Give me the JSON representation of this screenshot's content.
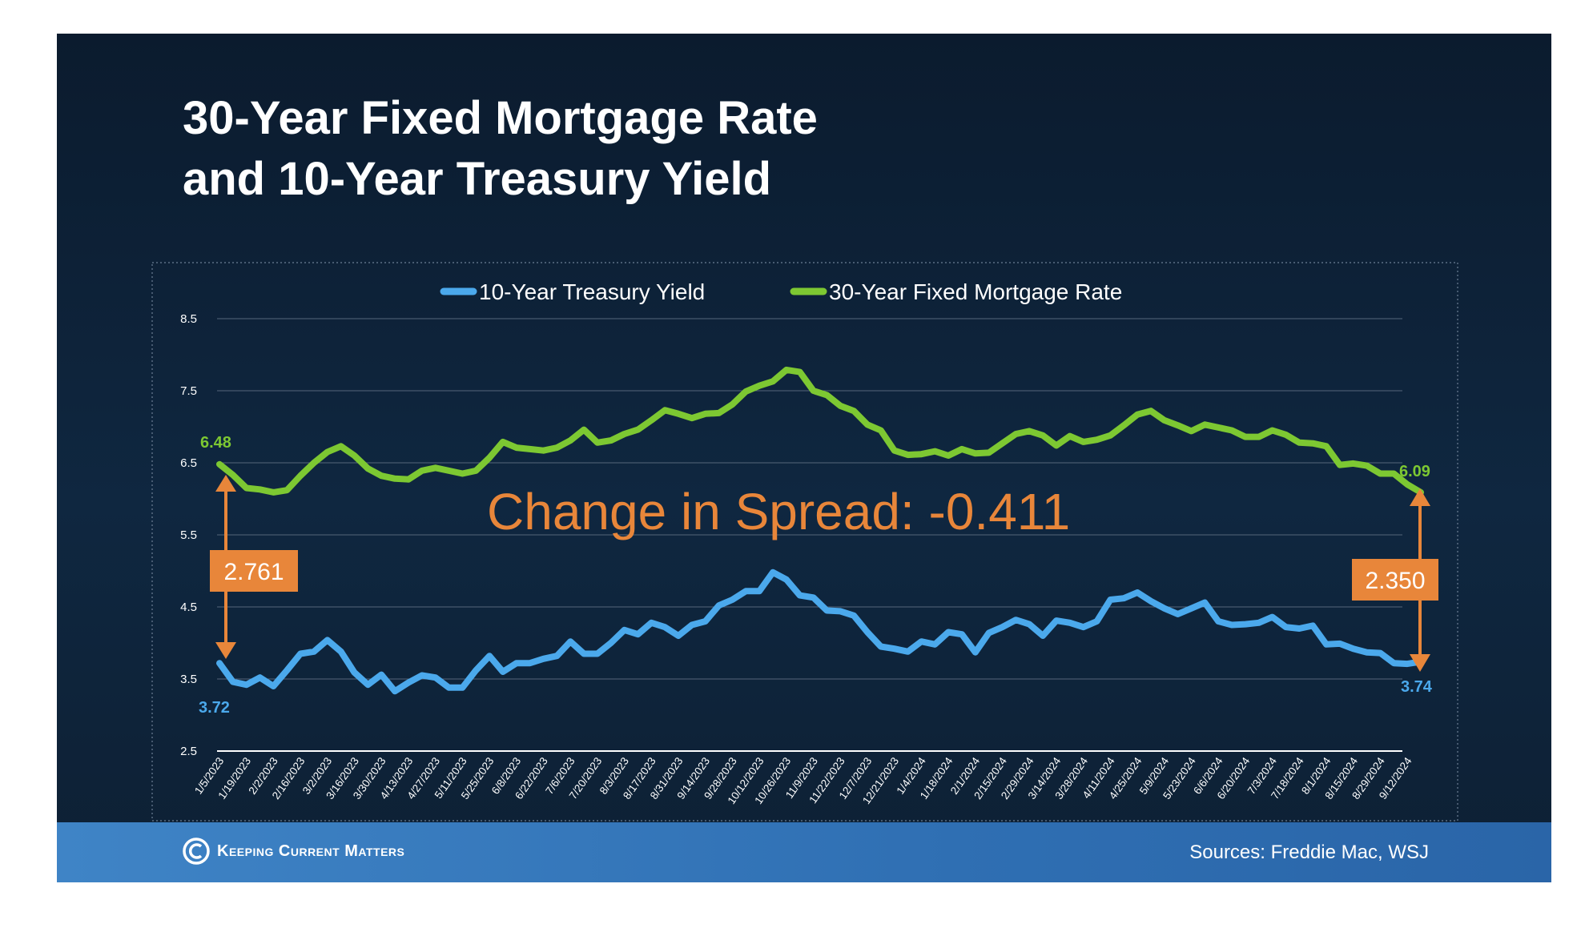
{
  "title": {
    "line1": "30-Year Fixed Mortgage Rate",
    "line2": "and 10-Year Treasury Yield"
  },
  "footer": {
    "logo_text": "Keeping Current Matters",
    "sources": "Sources: Freddie Mac, WSJ"
  },
  "colors": {
    "treasury": "#4ba9ec",
    "mortgage": "#7dc832",
    "accent": "#e8863a",
    "background": "#0f2740"
  },
  "annotations": {
    "spread_change": "Change in Spread: -0.411",
    "spread_start": "2.761",
    "spread_end": "2.350",
    "mortgage_start_label": "6.48",
    "mortgage_end_label": "6.09",
    "treasury_start_label": "3.72",
    "treasury_end_label": "3.74"
  },
  "chart_data": {
    "type": "line",
    "title": "",
    "xlabel": "",
    "ylabel": "",
    "ylim": [
      2.5,
      8.5
    ],
    "yticks": [
      "8.5",
      "7.5",
      "6.5",
      "5.5",
      "4.5",
      "3.5",
      "2.5"
    ],
    "grid": true,
    "legend_position": "top-center",
    "x_tick_labels": [
      "1/5/2023",
      "1/19/2023",
      "2/2/2023",
      "2/16/2023",
      "3/2/2023",
      "3/16/2023",
      "3/30/2023",
      "4/13/2023",
      "4/27/2023",
      "5/11/2023",
      "5/25/2023",
      "6/8/2023",
      "6/22/2023",
      "7/6/2023",
      "7/20/2023",
      "8/3/2023",
      "8/17/2023",
      "8/31/2023",
      "9/14/2023",
      "9/28/2023",
      "10/12/2023",
      "10/26/2023",
      "11/9/2023",
      "11/22/2023",
      "12/7/2023",
      "12/21/2023",
      "1/4/2024",
      "1/18/2024",
      "2/1/2024",
      "2/15/2024",
      "2/29/2024",
      "3/14/2024",
      "3/28/2024",
      "4/11/2024",
      "4/25/2024",
      "5/9/2024",
      "5/23/2024",
      "6/6/2024",
      "6/20/2024",
      "7/3/2024",
      "7/18/2024",
      "8/1/2024",
      "8/15/2024",
      "8/29/2024",
      "9/12/2024"
    ],
    "x_period": "weekly",
    "series": [
      {
        "name": "10-Year Treasury Yield",
        "values": [
          3.72,
          3.46,
          3.42,
          3.52,
          3.4,
          3.62,
          3.85,
          3.88,
          4.04,
          3.88,
          3.59,
          3.42,
          3.56,
          3.33,
          3.45,
          3.55,
          3.52,
          3.38,
          3.38,
          3.62,
          3.82,
          3.6,
          3.72,
          3.72,
          3.78,
          3.82,
          4.02,
          3.85,
          3.85,
          4.0,
          4.18,
          4.12,
          4.28,
          4.22,
          4.1,
          4.25,
          4.3,
          4.52,
          4.6,
          4.72,
          4.72,
          4.98,
          4.88,
          4.66,
          4.63,
          4.45,
          4.44,
          4.38,
          4.15,
          3.95,
          3.92,
          3.88,
          4.02,
          3.98,
          4.15,
          4.12,
          3.87,
          4.14,
          4.22,
          4.32,
          4.26,
          4.1,
          4.31,
          4.28,
          4.22,
          4.3,
          4.6,
          4.62,
          4.7,
          4.58,
          4.48,
          4.4,
          4.48,
          4.56,
          4.3,
          4.25,
          4.26,
          4.28,
          4.36,
          4.22,
          4.2,
          4.24,
          3.98,
          3.99,
          3.92,
          3.87,
          3.86,
          3.72,
          3.71,
          3.74
        ]
      },
      {
        "name": "30-Year Fixed Mortgage Rate",
        "values": [
          6.48,
          6.33,
          6.15,
          6.13,
          6.09,
          6.12,
          6.32,
          6.5,
          6.65,
          6.73,
          6.6,
          6.42,
          6.32,
          6.28,
          6.27,
          6.39,
          6.43,
          6.39,
          6.35,
          6.39,
          6.57,
          6.79,
          6.71,
          6.69,
          6.67,
          6.71,
          6.81,
          6.96,
          6.78,
          6.81,
          6.9,
          6.96,
          7.09,
          7.23,
          7.18,
          7.12,
          7.18,
          7.19,
          7.31,
          7.49,
          7.57,
          7.63,
          7.79,
          7.76,
          7.5,
          7.44,
          7.29,
          7.22,
          7.03,
          6.95,
          6.67,
          6.61,
          6.62,
          6.66,
          6.6,
          6.69,
          6.63,
          6.64,
          6.77,
          6.9,
          6.94,
          6.88,
          6.74,
          6.87,
          6.79,
          6.82,
          6.88,
          7.02,
          7.17,
          7.22,
          7.09,
          7.02,
          6.94,
          7.03,
          6.99,
          6.95,
          6.86,
          6.86,
          6.95,
          6.89,
          6.78,
          6.77,
          6.73,
          6.47,
          6.49,
          6.46,
          6.35,
          6.35,
          6.2,
          6.09
        ]
      }
    ]
  }
}
